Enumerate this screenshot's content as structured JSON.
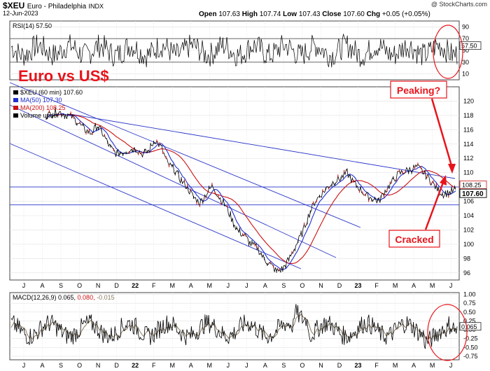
{
  "header": {
    "symbol": "$XEU",
    "name": "Euro - Philadelphia",
    "exchange": "INDX",
    "date": "12-Jun-2023",
    "copyright": "@ StockCharts.com",
    "open_label": "Open",
    "open": "107.63",
    "high_label": "High",
    "high": "107.74",
    "low_label": "Low",
    "low": "107.43",
    "close_label": "Close",
    "close": "107.60",
    "chg_label": "Chg",
    "chg": "+0.05 (+0.05%)"
  },
  "annotations": {
    "title": "Euro vs US$",
    "peaking": "Peaking?",
    "cracked": "Cracked"
  },
  "colors": {
    "price": "#000000",
    "ma50": "#1f2fd0",
    "ma200": "#cc1111",
    "trendline": "#2a36c8",
    "annotation": "#e8141b",
    "rsi": "#000000",
    "macd": "#000000",
    "macd_signal": "#8a7a60"
  },
  "x_axis": {
    "labels": [
      "J",
      "A",
      "S",
      "O",
      "N",
      "D",
      "22",
      "F",
      "M",
      "A",
      "M",
      "J",
      "J",
      "A",
      "S",
      "O",
      "N",
      "D",
      "23",
      "F",
      "M",
      "A",
      "M",
      "J"
    ]
  },
  "chart_data": [
    {
      "type": "line",
      "panel": "rsi",
      "legend": "RSI(14) 57.50",
      "value": 57.5,
      "value_label": "57.50",
      "y_ticks": [
        90,
        70,
        50,
        30,
        10
      ],
      "y_ticks_labels": [
        "90",
        "70",
        "50",
        "30",
        "10"
      ],
      "ylim": [
        0,
        100
      ],
      "reference_lines": [
        70,
        30
      ]
    },
    {
      "type": "line",
      "panel": "price",
      "legend": [
        {
          "name": "$XEU (60 min) 107.60",
          "color": "#000000"
        },
        {
          "name": "MA(50) 107.30",
          "color": "#1f2fd0"
        },
        {
          "name": "MA(200) 108.25",
          "color": "#cc1111"
        },
        {
          "name": "Volume undef",
          "color": "#000000"
        }
      ],
      "ylim": [
        95,
        122
      ],
      "y_ticks": [
        96,
        98,
        100,
        102,
        104,
        106,
        108,
        110,
        112,
        114,
        116,
        118,
        120
      ],
      "y_ticks_labels": [
        "96",
        "98",
        "100",
        "102",
        "104",
        "106",
        "108",
        "110",
        "112",
        "114",
        "116",
        "118",
        "120"
      ],
      "last_value_labels": [
        "108.25",
        "107.60"
      ],
      "horizontal_lines": [
        108,
        105.5
      ],
      "price_path": [
        [
          0.0,
          118.0
        ],
        [
          0.5,
          118.3
        ],
        [
          1.0,
          118.5
        ],
        [
          1.5,
          118.1
        ],
        [
          2.0,
          117.8
        ],
        [
          2.5,
          117.0
        ],
        [
          3.0,
          116.0
        ],
        [
          3.5,
          115.5
        ],
        [
          4.0,
          116.6
        ],
        [
          4.5,
          115.2
        ],
        [
          5.0,
          113.5
        ],
        [
          5.5,
          112.6
        ],
        [
          6.0,
          112.9
        ],
        [
          6.5,
          113.2
        ],
        [
          7.0,
          113.4
        ],
        [
          7.5,
          112.6
        ],
        [
          8.0,
          113.0
        ],
        [
          8.5,
          114.6
        ],
        [
          9.0,
          113.5
        ],
        [
          9.5,
          111.2
        ],
        [
          10.0,
          110.5
        ],
        [
          10.5,
          109.0
        ],
        [
          11.0,
          108.0
        ],
        [
          11.5,
          106.6
        ],
        [
          12.0,
          105.8
        ],
        [
          12.5,
          107.0
        ],
        [
          13.0,
          108.2
        ],
        [
          13.5,
          106.6
        ],
        [
          14.0,
          105.5
        ],
        [
          14.5,
          103.5
        ],
        [
          15.0,
          101.8
        ],
        [
          15.5,
          101.2
        ],
        [
          16.0,
          100.0
        ],
        [
          16.5,
          99.5
        ],
        [
          17.0,
          98.0
        ],
        [
          17.5,
          97.2
        ],
        [
          18.0,
          96.2
        ],
        [
          18.5,
          96.6
        ],
        [
          19.0,
          98.0
        ],
        [
          19.5,
          99.8
        ],
        [
          20.0,
          101.5
        ],
        [
          20.5,
          104.0
        ],
        [
          21.0,
          106.0
        ],
        [
          21.5,
          107.0
        ],
        [
          22.0,
          108.0
        ],
        [
          22.5,
          108.8
        ],
        [
          23.0,
          109.2
        ],
        [
          23.5,
          110.0
        ],
        [
          24.0,
          108.6
        ],
        [
          24.5,
          107.8
        ],
        [
          25.0,
          106.8
        ],
        [
          25.5,
          106.4
        ],
        [
          26.0,
          106.0
        ],
        [
          26.5,
          107.5
        ],
        [
          27.0,
          108.6
        ],
        [
          27.5,
          109.8
        ],
        [
          28.0,
          110.2
        ],
        [
          28.5,
          110.5
        ],
        [
          29.0,
          110.8
        ],
        [
          29.5,
          110.0
        ],
        [
          30.0,
          109.0
        ],
        [
          30.5,
          107.8
        ],
        [
          31.0,
          107.0
        ],
        [
          31.5,
          107.2
        ],
        [
          32.0,
          107.6
        ]
      ]
    },
    {
      "type": "line",
      "panel": "macd",
      "legend": "MACD(12,26,9) 0.065, 0.080, -0.015",
      "legend_values": {
        "macd": "0.065",
        "signal": "0.080",
        "histogram": "-0.015"
      },
      "value_label": "0.065",
      "y_ticks": [
        1.0,
        0.75,
        0.5,
        0.25,
        0.0,
        -0.25,
        -0.5,
        -0.75
      ],
      "y_ticks_labels": [
        "1.00",
        "0.75",
        "0.50",
        "0.25",
        "0.00",
        "-0.25",
        "-0.50",
        "-0.75"
      ],
      "ylim": [
        -0.85,
        1.05
      ]
    }
  ]
}
